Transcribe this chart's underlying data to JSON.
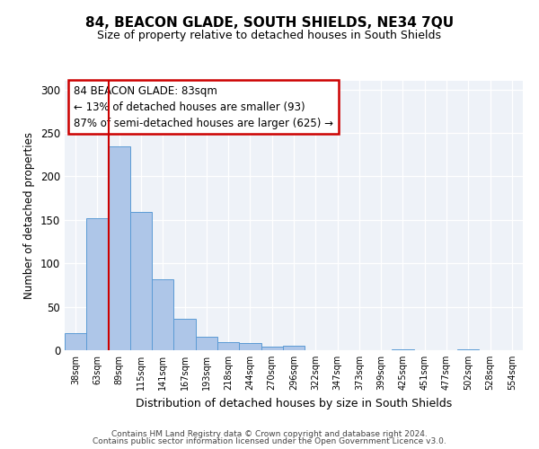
{
  "title": "84, BEACON GLADE, SOUTH SHIELDS, NE34 7QU",
  "subtitle": "Size of property relative to detached houses in South Shields",
  "xlabel": "Distribution of detached houses by size in South Shields",
  "ylabel": "Number of detached properties",
  "bin_labels": [
    "38sqm",
    "63sqm",
    "89sqm",
    "115sqm",
    "141sqm",
    "167sqm",
    "193sqm",
    "218sqm",
    "244sqm",
    "270sqm",
    "296sqm",
    "322sqm",
    "347sqm",
    "373sqm",
    "399sqm",
    "425sqm",
    "451sqm",
    "477sqm",
    "502sqm",
    "528sqm",
    "554sqm"
  ],
  "bar_values": [
    20,
    152,
    235,
    159,
    82,
    36,
    15,
    9,
    8,
    4,
    5,
    0,
    0,
    0,
    0,
    1,
    0,
    0,
    1,
    0,
    0
  ],
  "bar_color": "#aec6e8",
  "bar_edge_color": "#5b9bd5",
  "vline_color": "#cc0000",
  "annotation_box_title": "84 BEACON GLADE: 83sqm",
  "annotation_line1": "← 13% of detached houses are smaller (93)",
  "annotation_line2": "87% of semi-detached houses are larger (625) →",
  "annotation_box_edge_color": "#cc0000",
  "ylim": [
    0,
    310
  ],
  "yticks": [
    0,
    50,
    100,
    150,
    200,
    250,
    300
  ],
  "bg_color": "#eef2f8",
  "footer1": "Contains HM Land Registry data © Crown copyright and database right 2024.",
  "footer2": "Contains public sector information licensed under the Open Government Licence v3.0."
}
